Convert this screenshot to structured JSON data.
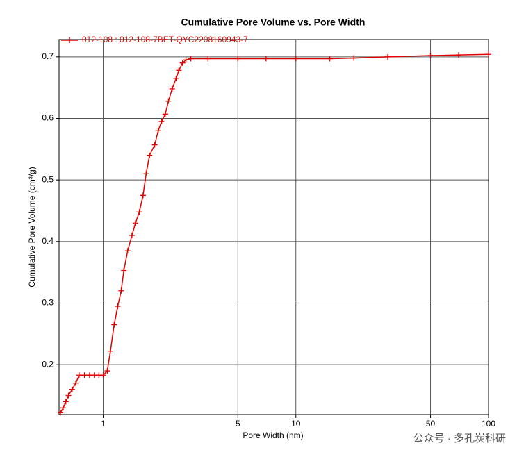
{
  "chart_data": {
    "type": "line",
    "title": "Cumulative Pore Volume vs. Pore Width",
    "xlabel": "Pore Width (nm)",
    "ylabel": "Cumulative Pore Volume (cm³/g)",
    "xscale": "log",
    "grid": true,
    "legend": "top-left",
    "watermark": "公众号 · 多孔炭科研",
    "xlim": [
      0.59,
      100
    ],
    "ylim": [
      0.119,
      0.728
    ],
    "xticks": [
      1,
      5,
      10,
      50,
      100
    ],
    "yticks": [
      0.2,
      0.3,
      0.4,
      0.5,
      0.6,
      0.7
    ],
    "x": [
      0.6,
      0.62,
      0.64,
      0.66,
      0.69,
      0.72,
      0.75,
      0.8,
      0.85,
      0.9,
      0.95,
      1.0,
      1.05,
      1.09,
      1.14,
      1.19,
      1.24,
      1.28,
      1.34,
      1.41,
      1.47,
      1.54,
      1.61,
      1.67,
      1.74,
      1.85,
      1.93,
      2.01,
      2.1,
      2.18,
      2.28,
      2.39,
      2.47,
      2.58,
      2.69,
      2.85,
      3.5,
      5,
      7,
      10,
      15,
      20,
      30,
      50,
      70,
      100
    ],
    "series": [
      {
        "name": "012-108 : 012-108-7BET-QYC2208160943-7",
        "color": "#e00000",
        "values": [
          0.122,
          0.13,
          0.14,
          0.15,
          0.16,
          0.17,
          0.183,
          0.183,
          0.183,
          0.183,
          0.183,
          0.183,
          0.19,
          0.222,
          0.265,
          0.295,
          0.32,
          0.353,
          0.385,
          0.41,
          0.43,
          0.448,
          0.475,
          0.51,
          0.54,
          0.557,
          0.58,
          0.595,
          0.607,
          0.628,
          0.648,
          0.665,
          0.678,
          0.69,
          0.695,
          0.697,
          0.697,
          0.697,
          0.697,
          0.697,
          0.697,
          0.698,
          0.7,
          0.702,
          0.703,
          0.704
        ]
      }
    ]
  }
}
